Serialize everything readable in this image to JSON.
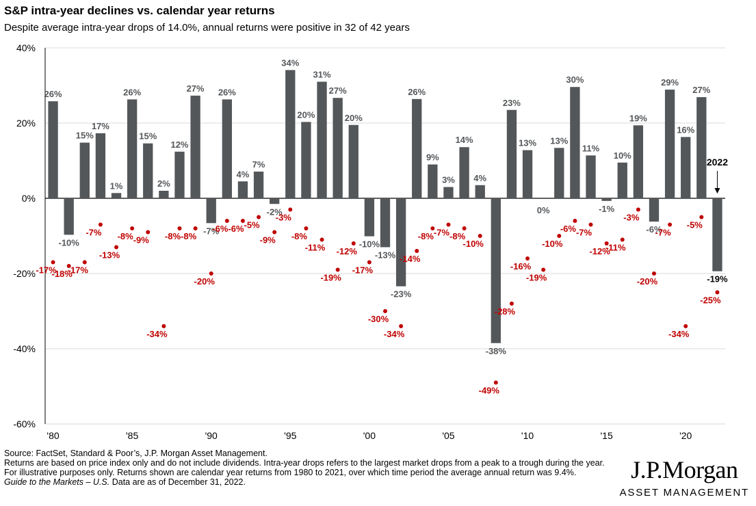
{
  "title": "S&P intra-year declines vs. calendar year returns",
  "subtitle": "Despite average intra-year drops of 14.0%, annual returns were positive in 32 of 42 years",
  "footer": {
    "source": "Source: FactSet, Standard & Poor’s, J.P. Morgan Asset Management.",
    "note": "Returns are based on price index only and do not include dividends. Intra-year drops refers to the largest market drops from a peak to a trough during the year. For illustrative purposes only. Returns shown are calendar year returns from 1980 to 2021, over which time period the average annual return was 9.4%.",
    "guide": "Guide to the Markets – U.S.",
    "as_of": " Data are as of December 31, 2022."
  },
  "logo": {
    "brand": "J.P.Morgan",
    "sub": "ASSET MANAGEMENT"
  },
  "colors": {
    "bar": "#54575a",
    "bar_label": "#54575a",
    "dot": "#c00000",
    "dot_label": "#c00000",
    "highlight_label": "#000000"
  },
  "chart_data": {
    "type": "bar",
    "title": "S&P intra-year declines vs. calendar year returns",
    "ylim": [
      -60,
      40
    ],
    "yticks": [
      40,
      20,
      0,
      -20,
      -40,
      -60
    ],
    "ytick_labels": [
      "40%",
      "20%",
      "0%",
      "-20%",
      "-40%",
      "-60%"
    ],
    "xtick_labels": [
      {
        "year": 1980,
        "label": "'80"
      },
      {
        "year": 1985,
        "label": "'85"
      },
      {
        "year": 1990,
        "label": "'90"
      },
      {
        "year": 1995,
        "label": "'95"
      },
      {
        "year": 2000,
        "label": "'00"
      },
      {
        "year": 2005,
        "label": "'05"
      },
      {
        "year": 2010,
        "label": "'10"
      },
      {
        "year": 2015,
        "label": "'15"
      },
      {
        "year": 2020,
        "label": "'20"
      }
    ],
    "grid": true,
    "years": [
      1980,
      1981,
      1982,
      1983,
      1984,
      1985,
      1986,
      1987,
      1988,
      1989,
      1990,
      1991,
      1992,
      1993,
      1994,
      1995,
      1996,
      1997,
      1998,
      1999,
      2000,
      2001,
      2002,
      2003,
      2004,
      2005,
      2006,
      2007,
      2008,
      2009,
      2010,
      2011,
      2012,
      2013,
      2014,
      2015,
      2016,
      2017,
      2018,
      2019,
      2020,
      2021,
      2022
    ],
    "series": [
      {
        "name": "Calendar year return",
        "values": [
          25.8,
          -9.7,
          14.8,
          17.3,
          1.4,
          26.3,
          14.6,
          2.0,
          12.4,
          27.3,
          -6.6,
          26.3,
          4.5,
          7.1,
          -1.5,
          34.1,
          20.3,
          31.0,
          26.7,
          19.5,
          -10.1,
          -13.0,
          -23.4,
          26.4,
          9.0,
          3.0,
          13.6,
          3.5,
          -38.5,
          23.5,
          12.8,
          0.0,
          13.4,
          29.6,
          11.4,
          -0.7,
          9.5,
          19.4,
          -6.2,
          28.9,
          16.3,
          26.9,
          -19.4
        ],
        "labels": [
          "26%",
          "-10%",
          "15%",
          "17%",
          "1%",
          "26%",
          "15%",
          "2%",
          "12%",
          "27%",
          "-7%",
          "26%",
          "4%",
          "7%",
          "-2%",
          "34%",
          "20%",
          "31%",
          "27%",
          "20%",
          "-10%",
          "-13%",
          "-23%",
          "26%",
          "9%",
          "3%",
          "14%",
          "4%",
          "-38%",
          "23%",
          "13%",
          "0%",
          "13%",
          "30%",
          "11%",
          "-1%",
          "10%",
          "19%",
          "-6%",
          "29%",
          "16%",
          "27%",
          "-19%"
        ]
      },
      {
        "name": "Intra-year decline",
        "values": [
          -17,
          -18,
          -17,
          -7,
          -13,
          -8,
          -9,
          -34,
          -8,
          -8,
          -20,
          -6,
          -6,
          -5,
          -9,
          -3,
          -8,
          -11,
          -19,
          -12,
          -17,
          -30,
          -34,
          -14,
          -8,
          -7,
          -8,
          -10,
          -49,
          -28,
          -16,
          -19,
          -10,
          -6,
          -7,
          -12,
          -11,
          -3,
          -20,
          -7,
          -34,
          -5,
          -25
        ],
        "labels": [
          "-17%",
          "-18%",
          "-17%",
          "-7%",
          "-13%",
          "-8%",
          "-9%",
          "-34%",
          "-8%",
          "-8%",
          "-20%",
          "-6%",
          "-6%",
          "-5%",
          "-9%",
          "-3%",
          "-8%",
          "-11%",
          "-19%",
          "-12%",
          "-17%",
          "-30%",
          "-34%",
          "-14%",
          "-8%",
          "-7%",
          "-8%",
          "-10%",
          "-49%",
          "-28%",
          "-16%",
          "-19%",
          "-10%",
          "-6%",
          "-7%",
          "-12%",
          "-11%",
          "-3%",
          "-20%",
          "-7%",
          "-34%",
          "-5%",
          "-25%"
        ]
      }
    ],
    "annotation": {
      "year": 2022,
      "text": "2022"
    }
  }
}
